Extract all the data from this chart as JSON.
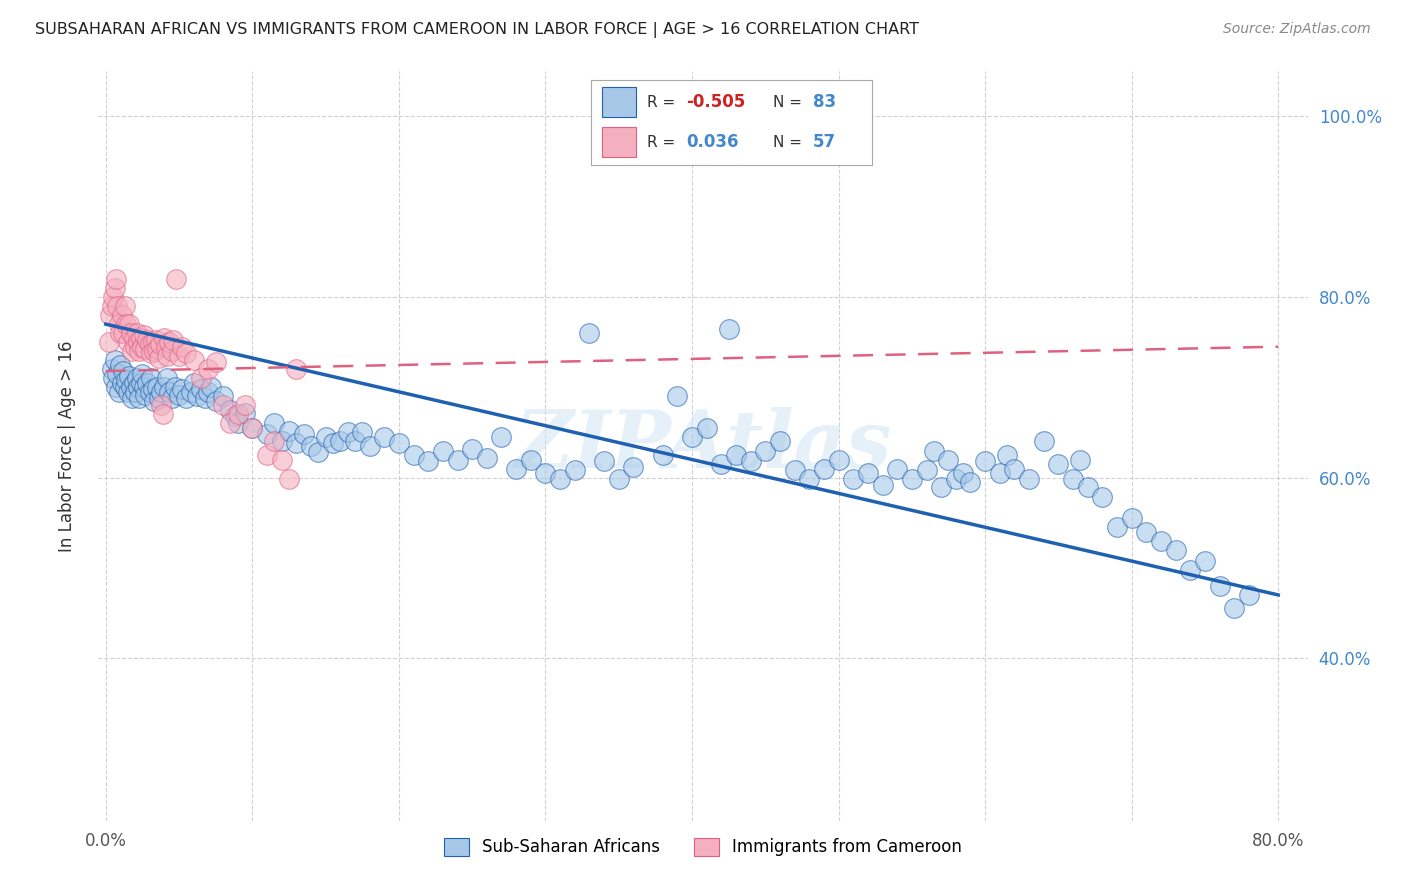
{
  "title": "SUBSAHARAN AFRICAN VS IMMIGRANTS FROM CAMEROON IN LABOR FORCE | AGE > 16 CORRELATION CHART",
  "source": "Source: ZipAtlas.com",
  "ylabel": "In Labor Force | Age > 16",
  "xlim": [
    -0.005,
    0.82
  ],
  "ylim": [
    0.22,
    1.05
  ],
  "x_ticks": [
    0.0,
    0.1,
    0.2,
    0.3,
    0.4,
    0.5,
    0.6,
    0.7,
    0.8
  ],
  "y_ticks": [
    0.4,
    0.6,
    0.8,
    1.0
  ],
  "y_tick_labels": [
    "40.0%",
    "60.0%",
    "80.0%",
    "100.0%"
  ],
  "legend_label_blue": "Sub-Saharan Africans",
  "legend_label_pink": "Immigrants from Cameroon",
  "blue_color": "#a8c8e8",
  "pink_color": "#f4afc0",
  "trend_blue_color": "#2060b0",
  "trend_pink_color": "#e06080",
  "watermark": "ZIPAtlas",
  "blue_scatter": [
    [
      0.004,
      0.72
    ],
    [
      0.005,
      0.71
    ],
    [
      0.006,
      0.73
    ],
    [
      0.007,
      0.7
    ],
    [
      0.008,
      0.715
    ],
    [
      0.009,
      0.695
    ],
    [
      0.01,
      0.725
    ],
    [
      0.011,
      0.705
    ],
    [
      0.012,
      0.718
    ],
    [
      0.013,
      0.7
    ],
    [
      0.014,
      0.708
    ],
    [
      0.015,
      0.695
    ],
    [
      0.016,
      0.712
    ],
    [
      0.017,
      0.7
    ],
    [
      0.018,
      0.688
    ],
    [
      0.019,
      0.705
    ],
    [
      0.02,
      0.695
    ],
    [
      0.021,
      0.71
    ],
    [
      0.022,
      0.7
    ],
    [
      0.023,
      0.688
    ],
    [
      0.024,
      0.705
    ],
    [
      0.025,
      0.715
    ],
    [
      0.026,
      0.7
    ],
    [
      0.027,
      0.692
    ],
    [
      0.028,
      0.705
    ],
    [
      0.03,
      0.695
    ],
    [
      0.031,
      0.71
    ],
    [
      0.032,
      0.698
    ],
    [
      0.033,
      0.685
    ],
    [
      0.035,
      0.7
    ],
    [
      0.036,
      0.688
    ],
    [
      0.038,
      0.695
    ],
    [
      0.04,
      0.7
    ],
    [
      0.042,
      0.71
    ],
    [
      0.043,
      0.695
    ],
    [
      0.045,
      0.688
    ],
    [
      0.047,
      0.7
    ],
    [
      0.05,
      0.692
    ],
    [
      0.052,
      0.698
    ],
    [
      0.055,
      0.688
    ],
    [
      0.058,
      0.695
    ],
    [
      0.06,
      0.705
    ],
    [
      0.062,
      0.69
    ],
    [
      0.065,
      0.698
    ],
    [
      0.068,
      0.688
    ],
    [
      0.07,
      0.695
    ],
    [
      0.072,
      0.7
    ],
    [
      0.075,
      0.685
    ],
    [
      0.08,
      0.69
    ],
    [
      0.085,
      0.675
    ],
    [
      0.088,
      0.668
    ],
    [
      0.09,
      0.66
    ],
    [
      0.095,
      0.672
    ],
    [
      0.1,
      0.655
    ],
    [
      0.11,
      0.648
    ],
    [
      0.115,
      0.66
    ],
    [
      0.12,
      0.64
    ],
    [
      0.125,
      0.652
    ],
    [
      0.13,
      0.638
    ],
    [
      0.135,
      0.648
    ],
    [
      0.14,
      0.635
    ],
    [
      0.145,
      0.628
    ],
    [
      0.15,
      0.645
    ],
    [
      0.155,
      0.638
    ],
    [
      0.16,
      0.64
    ],
    [
      0.165,
      0.65
    ],
    [
      0.17,
      0.64
    ],
    [
      0.175,
      0.65
    ],
    [
      0.18,
      0.635
    ],
    [
      0.19,
      0.645
    ],
    [
      0.2,
      0.638
    ],
    [
      0.21,
      0.625
    ],
    [
      0.22,
      0.618
    ],
    [
      0.23,
      0.63
    ],
    [
      0.24,
      0.62
    ],
    [
      0.25,
      0.632
    ],
    [
      0.26,
      0.622
    ],
    [
      0.27,
      0.645
    ],
    [
      0.28,
      0.61
    ],
    [
      0.29,
      0.62
    ],
    [
      0.3,
      0.605
    ],
    [
      0.31,
      0.598
    ],
    [
      0.32,
      0.608
    ],
    [
      0.33,
      0.76
    ],
    [
      0.34,
      0.618
    ],
    [
      0.35,
      0.598
    ],
    [
      0.36,
      0.612
    ],
    [
      0.38,
      0.625
    ],
    [
      0.39,
      0.69
    ],
    [
      0.4,
      0.645
    ],
    [
      0.41,
      0.655
    ],
    [
      0.42,
      0.615
    ],
    [
      0.425,
      0.765
    ],
    [
      0.43,
      0.625
    ],
    [
      0.44,
      0.618
    ],
    [
      0.45,
      0.63
    ],
    [
      0.46,
      0.64
    ],
    [
      0.47,
      0.608
    ],
    [
      0.48,
      0.598
    ],
    [
      0.49,
      0.61
    ],
    [
      0.5,
      0.62
    ],
    [
      0.51,
      0.598
    ],
    [
      0.52,
      0.605
    ],
    [
      0.53,
      0.592
    ],
    [
      0.54,
      0.61
    ],
    [
      0.55,
      0.598
    ],
    [
      0.56,
      0.608
    ],
    [
      0.565,
      0.63
    ],
    [
      0.57,
      0.59
    ],
    [
      0.575,
      0.62
    ],
    [
      0.58,
      0.598
    ],
    [
      0.585,
      0.605
    ],
    [
      0.59,
      0.595
    ],
    [
      0.6,
      0.618
    ],
    [
      0.61,
      0.605
    ],
    [
      0.615,
      0.625
    ],
    [
      0.62,
      0.61
    ],
    [
      0.63,
      0.598
    ],
    [
      0.64,
      0.64
    ],
    [
      0.65,
      0.615
    ],
    [
      0.66,
      0.598
    ],
    [
      0.665,
      0.62
    ],
    [
      0.67,
      0.59
    ],
    [
      0.68,
      0.578
    ],
    [
      0.69,
      0.545
    ],
    [
      0.7,
      0.555
    ],
    [
      0.71,
      0.54
    ],
    [
      0.72,
      0.53
    ],
    [
      0.73,
      0.52
    ],
    [
      0.74,
      0.498
    ],
    [
      0.75,
      0.508
    ],
    [
      0.76,
      0.48
    ],
    [
      0.77,
      0.455
    ],
    [
      0.78,
      0.47
    ]
  ],
  "pink_scatter": [
    [
      0.002,
      0.75
    ],
    [
      0.003,
      0.78
    ],
    [
      0.004,
      0.79
    ],
    [
      0.005,
      0.8
    ],
    [
      0.006,
      0.81
    ],
    [
      0.007,
      0.82
    ],
    [
      0.008,
      0.79
    ],
    [
      0.009,
      0.77
    ],
    [
      0.01,
      0.76
    ],
    [
      0.011,
      0.78
    ],
    [
      0.012,
      0.76
    ],
    [
      0.013,
      0.79
    ],
    [
      0.014,
      0.77
    ],
    [
      0.015,
      0.75
    ],
    [
      0.016,
      0.77
    ],
    [
      0.017,
      0.76
    ],
    [
      0.018,
      0.74
    ],
    [
      0.019,
      0.755
    ],
    [
      0.02,
      0.745
    ],
    [
      0.021,
      0.76
    ],
    [
      0.022,
      0.75
    ],
    [
      0.023,
      0.74
    ],
    [
      0.024,
      0.755
    ],
    [
      0.025,
      0.745
    ],
    [
      0.026,
      0.758
    ],
    [
      0.027,
      0.742
    ],
    [
      0.028,
      0.752
    ],
    [
      0.03,
      0.748
    ],
    [
      0.031,
      0.738
    ],
    [
      0.032,
      0.75
    ],
    [
      0.033,
      0.74
    ],
    [
      0.034,
      0.752
    ],
    [
      0.035,
      0.742
    ],
    [
      0.036,
      0.732
    ],
    [
      0.037,
      0.748
    ],
    [
      0.038,
      0.68
    ],
    [
      0.039,
      0.67
    ],
    [
      0.04,
      0.755
    ],
    [
      0.041,
      0.745
    ],
    [
      0.042,
      0.735
    ],
    [
      0.043,
      0.75
    ],
    [
      0.045,
      0.74
    ],
    [
      0.046,
      0.752
    ],
    [
      0.048,
      0.82
    ],
    [
      0.05,
      0.735
    ],
    [
      0.052,
      0.745
    ],
    [
      0.055,
      0.738
    ],
    [
      0.06,
      0.73
    ],
    [
      0.065,
      0.71
    ],
    [
      0.07,
      0.72
    ],
    [
      0.075,
      0.728
    ],
    [
      0.08,
      0.68
    ],
    [
      0.085,
      0.66
    ],
    [
      0.09,
      0.67
    ],
    [
      0.095,
      0.68
    ],
    [
      0.1,
      0.655
    ],
    [
      0.11,
      0.625
    ],
    [
      0.115,
      0.64
    ],
    [
      0.12,
      0.62
    ],
    [
      0.125,
      0.598
    ],
    [
      0.13,
      0.72
    ]
  ],
  "blue_trend_x": [
    0.0,
    0.8
  ],
  "blue_trend_y": [
    0.77,
    0.47
  ],
  "pink_trend_x": [
    0.0,
    0.8
  ],
  "pink_trend_y": [
    0.718,
    0.745
  ]
}
